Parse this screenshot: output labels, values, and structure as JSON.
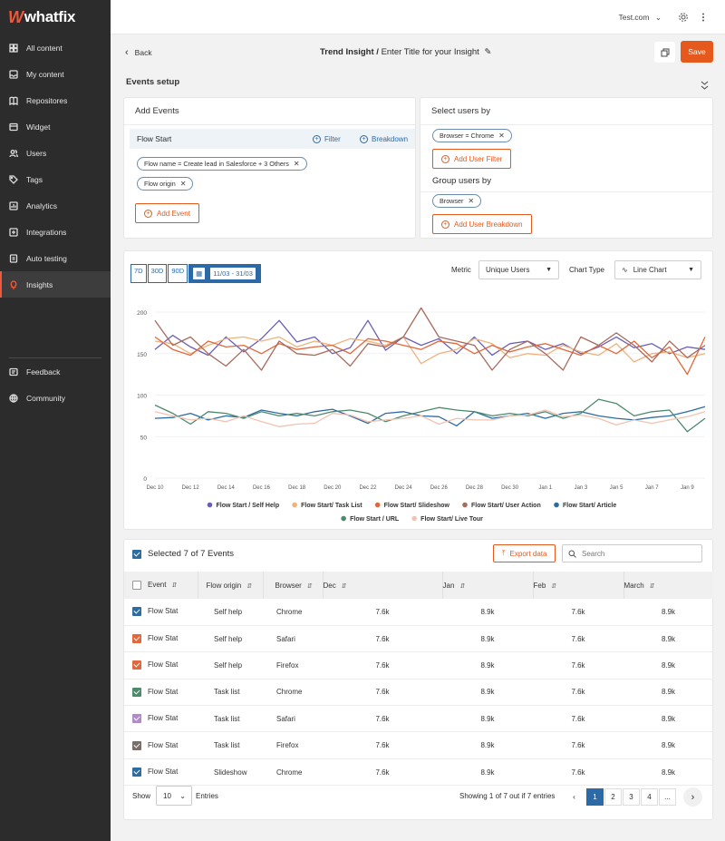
{
  "brand": {
    "name": "whatfix",
    "accent": "#e55a1c"
  },
  "sidebar": {
    "items": [
      {
        "label": "All content",
        "icon": "grid-icon"
      },
      {
        "label": "My content",
        "icon": "inbox-icon"
      },
      {
        "label": "Repositores",
        "icon": "book-icon"
      },
      {
        "label": "Widget",
        "icon": "widget-icon"
      },
      {
        "label": "Users",
        "icon": "users-icon"
      },
      {
        "label": "Tags",
        "icon": "tag-icon"
      },
      {
        "label": "Analytics",
        "icon": "analytics-icon"
      },
      {
        "label": "Integrations",
        "icon": "integrations-icon"
      },
      {
        "label": "Auto testing",
        "icon": "auto-testing-icon"
      },
      {
        "label": "Insights",
        "icon": "bulb-icon",
        "active": true
      }
    ],
    "bottom": [
      {
        "label": "Feedback",
        "icon": "feedback-icon"
      },
      {
        "label": "Community",
        "icon": "globe-icon"
      }
    ]
  },
  "topbar": {
    "site": "Test.com"
  },
  "header": {
    "back_label": "Back",
    "title_bold": "Trend Insight /",
    "title_placeholder": "Enter Title for your Insight",
    "save_label": "Save"
  },
  "events_setup": {
    "title": "Events setup",
    "add_events": {
      "title": "Add Events",
      "event_name": "Flow Start",
      "filter_label": "Filter",
      "breakdown_label": "Breakdown",
      "chips": [
        "Flow name = Create lead in Salesforce + 3 Others",
        "Flow origin"
      ],
      "add_event_label": "Add Event"
    },
    "select_users": {
      "title": "Select users by",
      "chip": "Browser = Chrome",
      "add_filter_label": "Add User Filter",
      "group_title": "Group users by",
      "group_chip": "Browser",
      "add_breakdown_label": "Add User Breakdown"
    }
  },
  "chart_controls": {
    "ranges": [
      "7D",
      "30D",
      "90D"
    ],
    "date_range": "11/03 - 31/03",
    "metric_label": "Metric",
    "metric_value": "Unique Users",
    "chart_type_label": "Chart Type",
    "chart_type_value": "Line Chart"
  },
  "chart_data": {
    "type": "line",
    "x": [
      "Dec 10",
      "Dec 11",
      "Dec 12",
      "Dec 13",
      "Dec 14",
      "Dec 15",
      "Dec 16",
      "Dec 17",
      "Dec 18",
      "Dec 19",
      "Dec 20",
      "Dec 21",
      "Dec 22",
      "Dec 23",
      "Dec 24",
      "Dec 25",
      "Dec 26",
      "Dec 27",
      "Dec 28",
      "Dec 29",
      "Dec 30",
      "Dec 31",
      "Jan 1",
      "Jan 2",
      "Jan 3",
      "Jan 4",
      "Jan 5",
      "Jan 6",
      "Jan 7",
      "Jan 8",
      "Jan 9",
      "Jan 10"
    ],
    "x_tick_labels": [
      "Dec 10",
      "Dec 12",
      "Dec 14",
      "Dec 16",
      "Dec 18",
      "Dec 20",
      "Dec 22",
      "Dec 24",
      "Dec 26",
      "Dec 28",
      "Dec 30",
      "Jan 1",
      "Jan 3",
      "Jan 5",
      "Jan 7",
      "Jan 9"
    ],
    "y_ticks": [
      0,
      50,
      100,
      150,
      200
    ],
    "ylim": [
      0,
      200
    ],
    "legend_position": "bottom",
    "series": [
      {
        "name": "Flow Start / Self Help",
        "color": "#6b5fb5",
        "values": [
          155,
          172,
          158,
          148,
          170,
          152,
          168,
          190,
          164,
          170,
          150,
          157,
          190,
          154,
          170,
          160,
          168,
          150,
          170,
          148,
          162,
          165,
          155,
          162,
          150,
          158,
          170,
          157,
          162,
          150,
          158,
          155
        ]
      },
      {
        "name": "Flow Start/ Task List",
        "color": "#f0b27a",
        "values": [
          165,
          162,
          150,
          160,
          168,
          170,
          165,
          170,
          158,
          165,
          160,
          168,
          165,
          160,
          170,
          138,
          150,
          155,
          168,
          162,
          145,
          150,
          148,
          160,
          152,
          148,
          162,
          140,
          150,
          152,
          145,
          150
        ]
      },
      {
        "name": "Flow Start/ Slideshow",
        "color": "#e0683c",
        "values": [
          170,
          155,
          148,
          165,
          158,
          160,
          150,
          162,
          155,
          158,
          160,
          150,
          168,
          165,
          160,
          155,
          165,
          162,
          150,
          160,
          152,
          158,
          162,
          155,
          148,
          160,
          150,
          165,
          145,
          158,
          125,
          170
        ]
      },
      {
        "name": "Flow Start/ User Action",
        "color": "#a86a5c",
        "values": [
          190,
          160,
          170,
          150,
          135,
          155,
          130,
          165,
          150,
          148,
          155,
          135,
          162,
          158,
          170,
          205,
          170,
          165,
          160,
          130,
          155,
          165,
          150,
          130,
          170,
          160,
          175,
          160,
          140,
          165,
          145,
          160
        ]
      },
      {
        "name": "Flow Start/ Article",
        "color": "#2e6ca0",
        "values": [
          72,
          73,
          78,
          70,
          75,
          73,
          82,
          78,
          75,
          80,
          83,
          75,
          66,
          78,
          80,
          75,
          74,
          63,
          80,
          72,
          75,
          78,
          72,
          78,
          80,
          75,
          72,
          70,
          73,
          75,
          80,
          86
        ]
      },
      {
        "name": "Flow Start / URL",
        "color": "#4c8a6c",
        "values": [
          88,
          78,
          65,
          80,
          78,
          72,
          80,
          75,
          78,
          75,
          80,
          82,
          78,
          68,
          75,
          80,
          85,
          82,
          80,
          75,
          78,
          75,
          80,
          72,
          78,
          95,
          90,
          75,
          80,
          82,
          56,
          72
        ]
      },
      {
        "name": "Flow Start/ Live Tour",
        "color": "#f1c3b2",
        "values": [
          80,
          75,
          70,
          72,
          68,
          75,
          68,
          62,
          65,
          66,
          78,
          76,
          68,
          70,
          72,
          75,
          65,
          72,
          70,
          70,
          75,
          76,
          82,
          74,
          76,
          72,
          64,
          70,
          66,
          70,
          74,
          80
        ]
      }
    ]
  },
  "table": {
    "selected_label": "Selected 7 of 7 Events",
    "export_label": "Export data",
    "search_placeholder": "Search",
    "headers": [
      "Event",
      "Flow origin",
      "Browser",
      "Dec",
      "Jan",
      "Feb",
      "March"
    ],
    "rows": [
      {
        "color": "#2e6ca0",
        "event": "Flow Stat",
        "origin": "Self help",
        "browser": "Chrome",
        "dec": "7.6k",
        "jan": "8.9k",
        "feb": "7.6k",
        "mar": "8.9k"
      },
      {
        "color": "#e0683c",
        "event": "Flow Stat",
        "origin": "Self help",
        "browser": "Safari",
        "dec": "7.6k",
        "jan": "8.9k",
        "feb": "7.6k",
        "mar": "8.9k"
      },
      {
        "color": "#e0683c",
        "event": "Flow Stat",
        "origin": "Self help",
        "browser": "Firefox",
        "dec": "7.6k",
        "jan": "8.9k",
        "feb": "7.6k",
        "mar": "8.9k"
      },
      {
        "color": "#4c8a6c",
        "event": "Flow Stat",
        "origin": "Task list",
        "browser": "Chrome",
        "dec": "7.6k",
        "jan": "8.9k",
        "feb": "7.6k",
        "mar": "8.9k"
      },
      {
        "color": "#b18bc9",
        "event": "Flow Stat",
        "origin": "Task list",
        "browser": "Safari",
        "dec": "7.6k",
        "jan": "8.9k",
        "feb": "7.6k",
        "mar": "8.9k"
      },
      {
        "color": "#7a6e6a",
        "event": "Flow Stat",
        "origin": "Task list",
        "browser": "Firefox",
        "dec": "7.6k",
        "jan": "8.9k",
        "feb": "7.6k",
        "mar": "8.9k"
      },
      {
        "color": "#2e6ca0",
        "event": "Flow Stat",
        "origin": "Slideshow",
        "browser": "Chrome",
        "dec": "7.6k",
        "jan": "8.9k",
        "feb": "7.6k",
        "mar": "8.9k"
      }
    ],
    "show_label": "Show",
    "page_size": "10",
    "entries_label": "Entries",
    "summary": "Showing 1 of 7 out if 7 entries",
    "pages": [
      "1",
      "2",
      "3",
      "4",
      "..."
    ]
  }
}
